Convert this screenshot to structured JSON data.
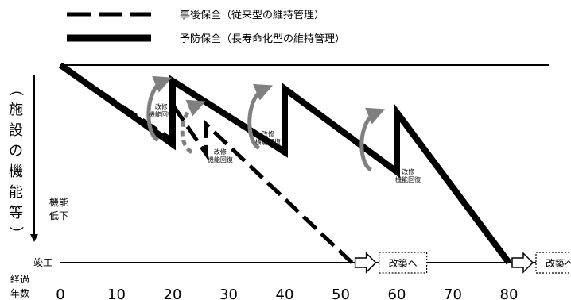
{
  "chart_data": {
    "type": "line",
    "title": "",
    "y_axis_label": "（施設の機能等）",
    "y_down_label": "機能低下",
    "baseline_label": "竣工",
    "x_axis_label": "経過年数",
    "x_ticks": [
      0,
      10,
      20,
      30,
      40,
      50,
      60,
      70,
      80
    ],
    "xlim": [
      0,
      80
    ],
    "ylim": [
      0,
      100
    ],
    "series": [
      {
        "name": "事後保全（従来型の維持管理）",
        "style": "dashed",
        "points": [
          {
            "x": 0,
            "y": 100
          },
          {
            "x": 20,
            "y": 62
          },
          {
            "x": 20,
            "y": 80
          },
          {
            "x": 26,
            "y": 55
          },
          {
            "x": 26,
            "y": 70
          },
          {
            "x": 52,
            "y": 0
          }
        ]
      },
      {
        "name": "予防保全（長寿命化型の維持管理）",
        "style": "solid",
        "points": [
          {
            "x": 0,
            "y": 100
          },
          {
            "x": 20,
            "y": 60
          },
          {
            "x": 20,
            "y": 92
          },
          {
            "x": 40,
            "y": 56
          },
          {
            "x": 40,
            "y": 88
          },
          {
            "x": 60,
            "y": 46
          },
          {
            "x": 60,
            "y": 76
          },
          {
            "x": 80,
            "y": 0
          }
        ]
      }
    ],
    "annotations": [
      {
        "text": "改修",
        "text2": "機能回復",
        "x": 18,
        "y": 78
      },
      {
        "text": "改修",
        "text2": "機能回復",
        "x": 28.5,
        "y": 55
      },
      {
        "text": "改修",
        "text2": "機能回復",
        "x": 37,
        "y": 64
      },
      {
        "text": "改修",
        "text2": "機能回復",
        "x": 62,
        "y": 45
      }
    ],
    "arrows": [
      {
        "x": 17,
        "y_from": 62,
        "y_to": 92,
        "style": "solid"
      },
      {
        "x": 23,
        "y_from": 56,
        "y_to": 80,
        "style": "dashed"
      },
      {
        "x": 35,
        "y_from": 58,
        "y_to": 88,
        "style": "solid"
      },
      {
        "x": 55,
        "y_from": 47,
        "y_to": 76,
        "style": "solid"
      }
    ],
    "rebuild_labels": [
      {
        "text": "改築へ",
        "x": 52
      },
      {
        "text": "改築へ",
        "x": 80
      }
    ],
    "colors": {
      "line": "#000000",
      "arrow": "#808080"
    }
  }
}
